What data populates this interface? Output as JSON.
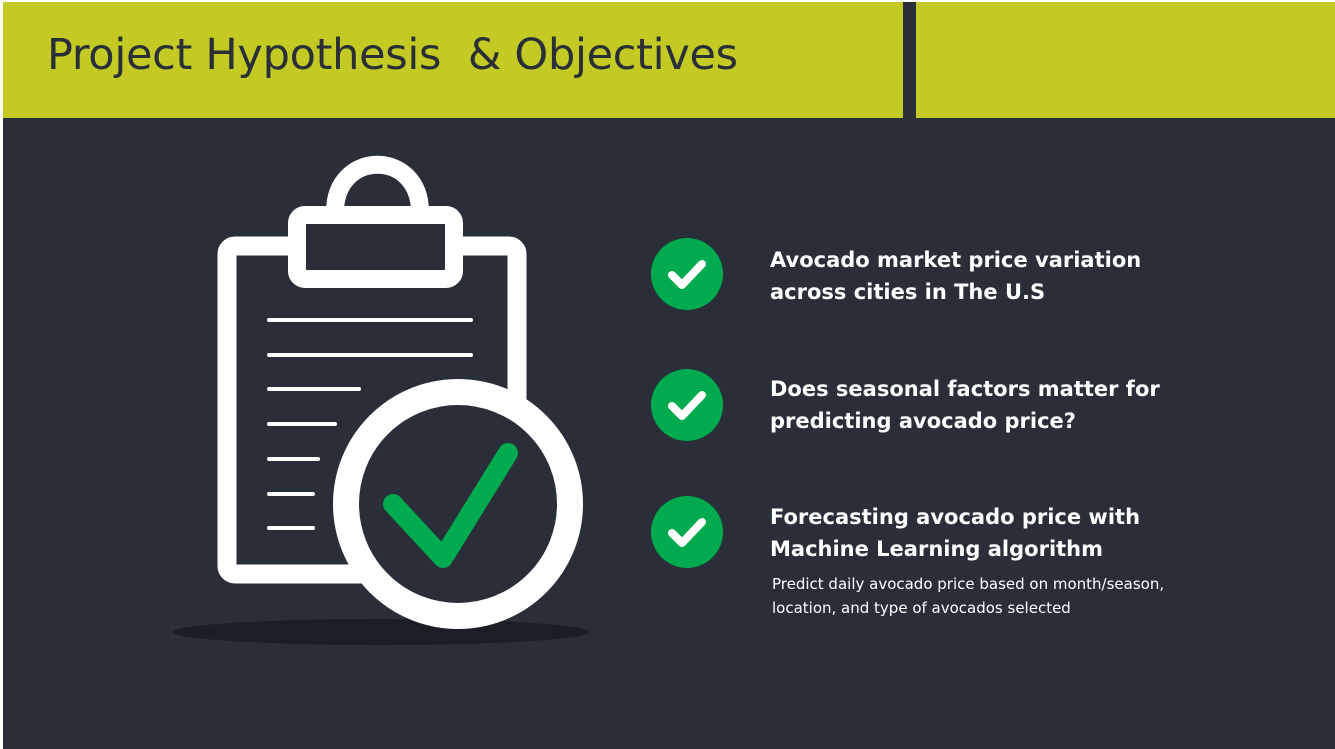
{
  "slide": {
    "title": "Project Hypothesis  & Objectives",
    "colors": {
      "header_band": "#c3ca24",
      "background": "#292e38",
      "accent_green": "#00aa4f",
      "text": "#ffffff"
    },
    "illustration": {
      "icons": [
        "clipboard-icon",
        "magnifier-check-icon"
      ]
    },
    "objectives": [
      {
        "icon": "check-circle-icon",
        "title": "Avocado market price variation across cities in The U.S"
      },
      {
        "icon": "check-circle-icon",
        "title": "Does seasonal factors matter for predicting avocado price?"
      },
      {
        "icon": "check-circle-icon",
        "title": "Forecasting avocado price with Machine Learning algorithm",
        "subtitle": "Predict daily avocado price based on month/season, location, and type of avocados selected"
      }
    ]
  }
}
